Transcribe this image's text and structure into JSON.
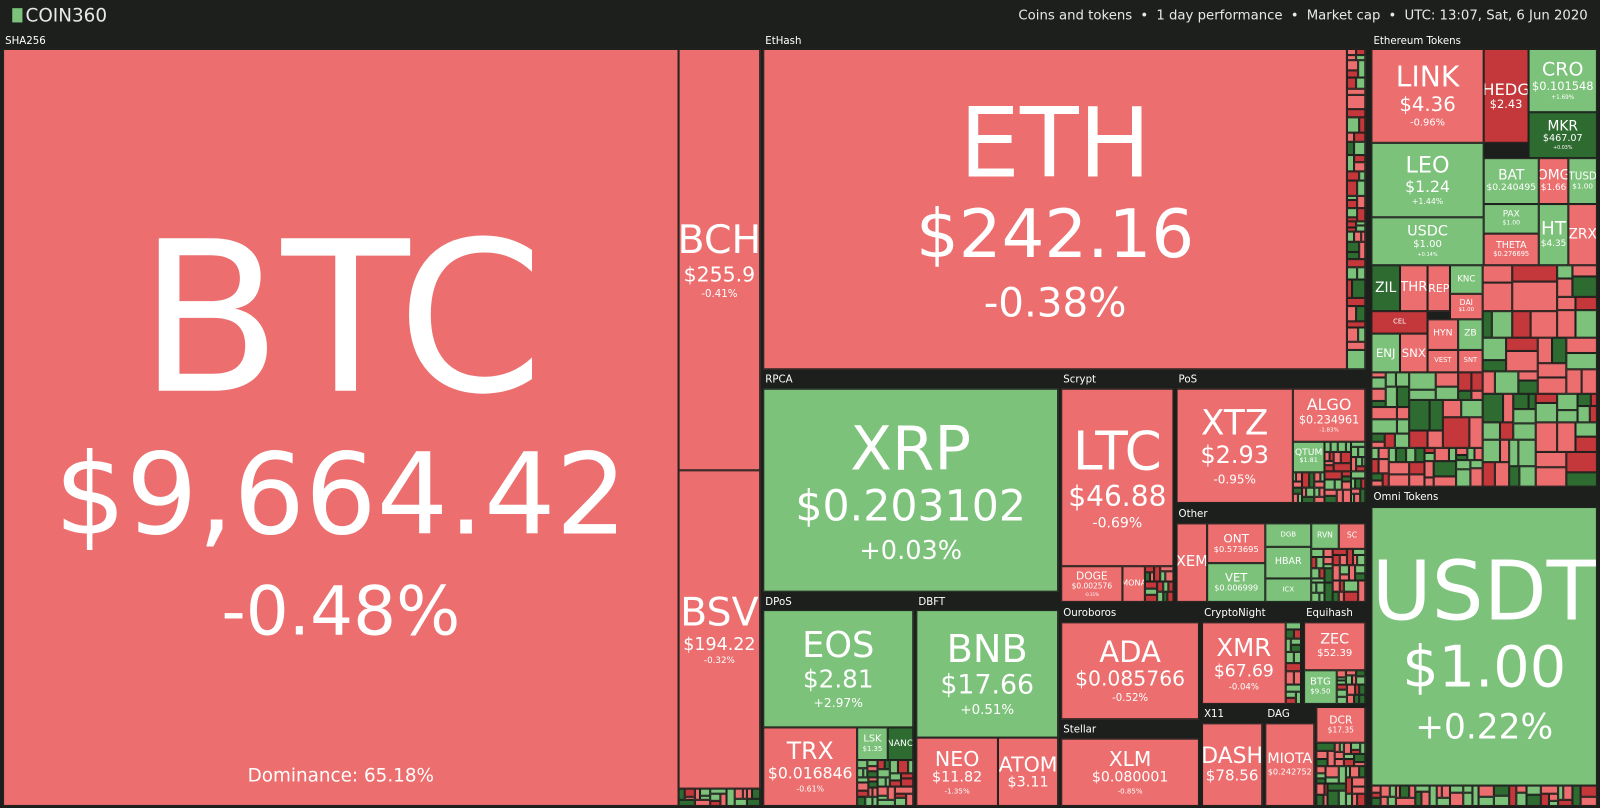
{
  "header": {
    "logo": "COIN360",
    "items": [
      "Coins and tokens",
      "1 day performance",
      "Market cap",
      "UTC: 13:07, Sat, 6 Jun 2020"
    ]
  },
  "dominance": "Dominance: 65.18%",
  "groups": [
    {
      "name": "SHA256",
      "tiles": [
        {
          "symbol": "BTC",
          "price": "$9,664.42",
          "change": "-0.48%"
        },
        {
          "symbol": "BCH",
          "price": "$255.9",
          "change": "-0.41%"
        },
        {
          "symbol": "BSV",
          "price": "$194.22",
          "change": "-0.32%"
        }
      ]
    },
    {
      "name": "EtHash",
      "tiles": [
        {
          "symbol": "ETH",
          "price": "$242.16",
          "change": "-0.38%"
        }
      ]
    },
    {
      "name": "Ethereum Tokens",
      "tiles": [
        {
          "symbol": "LINK",
          "price": "$4.36",
          "change": "-0.96%"
        },
        {
          "symbol": "HEDG",
          "price": "$2.43"
        },
        {
          "symbol": "CRO",
          "price": "$0.101548",
          "change": "+1.69%"
        },
        {
          "symbol": "MKR",
          "price": "$467.07",
          "change": "+0.03%"
        },
        {
          "symbol": "LEO",
          "price": "$1.24",
          "change": "+1.44%"
        },
        {
          "symbol": "BAT",
          "price": "$0.240495"
        },
        {
          "symbol": "OMG",
          "price": "$1.66"
        },
        {
          "symbol": "TUSD",
          "price": "$1.00"
        },
        {
          "symbol": "PAX",
          "price": "$1.00"
        },
        {
          "symbol": "USDC",
          "price": "$1.00",
          "change": "+0.14%"
        },
        {
          "symbol": "THETA",
          "price": "$0.276695"
        },
        {
          "symbol": "HT",
          "price": "$4.35"
        },
        {
          "symbol": "ZRX"
        },
        {
          "symbol": "ZIL"
        },
        {
          "symbol": "THR"
        },
        {
          "symbol": "REP"
        },
        {
          "symbol": "KNC"
        },
        {
          "symbol": "DAI",
          "price": "$1.00"
        },
        {
          "symbol": "CEL"
        },
        {
          "symbol": "ENJ"
        },
        {
          "symbol": "SNX"
        },
        {
          "symbol": "HYN"
        },
        {
          "symbol": "ZB"
        },
        {
          "symbol": "VEST"
        },
        {
          "symbol": "SNT"
        }
      ]
    },
    {
      "name": "RPCA",
      "tiles": [
        {
          "symbol": "XRP",
          "price": "$0.203102",
          "change": "+0.03%"
        }
      ]
    },
    {
      "name": "Scrypt",
      "tiles": [
        {
          "symbol": "LTC",
          "price": "$46.88",
          "change": "-0.69%"
        },
        {
          "symbol": "DOGE",
          "price": "$0.002576",
          "change": "-0.31%"
        },
        {
          "symbol": "MONA"
        }
      ]
    },
    {
      "name": "PoS",
      "tiles": [
        {
          "symbol": "XTZ",
          "price": "$2.93",
          "change": "-0.95%"
        },
        {
          "symbol": "ALGO",
          "price": "$0.234961",
          "change": "-1.83%"
        },
        {
          "symbol": "QTUM",
          "price": "$1.81"
        }
      ]
    },
    {
      "name": "Other",
      "tiles": [
        {
          "symbol": "XEM"
        },
        {
          "symbol": "ONT",
          "price": "$0.573695"
        },
        {
          "symbol": "VET",
          "price": "$0.006999"
        },
        {
          "symbol": "DGB"
        },
        {
          "symbol": "HBAR"
        },
        {
          "symbol": "ICX"
        },
        {
          "symbol": "RVN"
        },
        {
          "symbol": "SC"
        }
      ]
    },
    {
      "name": "Omni Tokens",
      "tiles": [
        {
          "symbol": "USDT",
          "price": "$1.00",
          "change": "+0.22%"
        }
      ]
    },
    {
      "name": "DPoS",
      "tiles": [
        {
          "symbol": "EOS",
          "price": "$2.81",
          "change": "+2.97%"
        },
        {
          "symbol": "TRX",
          "price": "$0.016846",
          "change": "-0.61%"
        },
        {
          "symbol": "LSK",
          "price": "$1.35"
        },
        {
          "symbol": "NANO"
        }
      ]
    },
    {
      "name": "DBFT",
      "tiles": [
        {
          "symbol": "BNB",
          "price": "$17.66",
          "change": "+0.51%"
        },
        {
          "symbol": "NEO",
          "price": "$11.82",
          "change": "-1.35%"
        },
        {
          "symbol": "ATOM",
          "price": "$3.11"
        }
      ]
    },
    {
      "name": "Ouroboros",
      "tiles": [
        {
          "symbol": "ADA",
          "price": "$0.085766",
          "change": "-0.52%"
        }
      ]
    },
    {
      "name": "CryptoNight",
      "tiles": [
        {
          "symbol": "XMR",
          "price": "$67.69",
          "change": "-0.04%"
        }
      ]
    },
    {
      "name": "Equihash",
      "tiles": [
        {
          "symbol": "ZEC",
          "price": "$52.39"
        },
        {
          "symbol": "BTG",
          "price": "$9.50"
        }
      ]
    },
    {
      "name": "Stellar",
      "tiles": [
        {
          "symbol": "XLM",
          "price": "$0.080001",
          "change": "-0.85%"
        }
      ]
    },
    {
      "name": "X11",
      "tiles": [
        {
          "symbol": "DASH",
          "price": "$78.56"
        }
      ]
    },
    {
      "name": "DAG",
      "tiles": [
        {
          "symbol": "MIOTA",
          "price": "$0.242752"
        }
      ]
    },
    {
      "tiles": [
        {
          "symbol": "DCR",
          "price": "$17.35"
        }
      ]
    }
  ]
}
